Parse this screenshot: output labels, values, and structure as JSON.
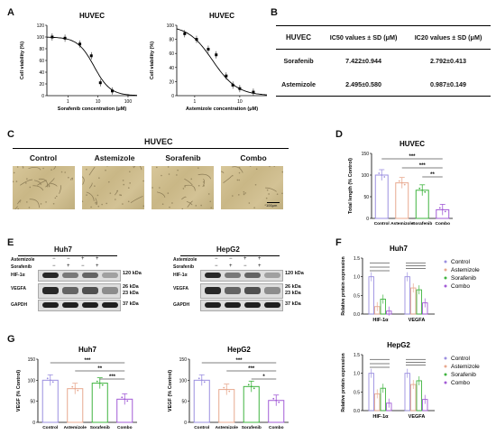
{
  "panel_letters": {
    "a": "A",
    "b": "B",
    "c": "C",
    "d": "D",
    "e": "E",
    "f": "F",
    "g": "G"
  },
  "panelA": {
    "chart1": {
      "title": "HUVEC",
      "xlabel": "Sorafenib concentration (μM)",
      "ylabel": "Cell viability (%)",
      "yticks": [
        "0",
        "20",
        "40",
        "60",
        "80",
        "100",
        "120"
      ],
      "xticks": [
        "1",
        "10",
        "100"
      ]
    },
    "chart2": {
      "title": "HUVEC",
      "xlabel": "Astemizole concentration (μM)",
      "ylabel": "Cell viability (%)",
      "yticks": [
        "0",
        "20",
        "40",
        "60",
        "80",
        "100"
      ],
      "xticks": [
        "1",
        "10"
      ]
    }
  },
  "panelB": {
    "headers": [
      "HUVEC",
      "IC50 values ± SD (μM)",
      "IC20 values ± SD (μM)"
    ],
    "rows": [
      [
        "Sorafenib",
        "7.422±0.944",
        "2.792±0.413"
      ],
      [
        "Astemizole",
        "2.495±0.580",
        "0.987±0.149"
      ]
    ]
  },
  "panelC": {
    "title": "HUVEC",
    "labels": [
      "Control",
      "Astemizole",
      "Sorafenib",
      "Combo"
    ],
    "scale": "100μm"
  },
  "panelD": {
    "title": "HUVEC",
    "ylabel": "Total length (% Control)",
    "yticks": [
      "0",
      "50",
      "100",
      "150"
    ],
    "categories": [
      "Control",
      "Astemizole",
      "Sorafenib",
      "Combo"
    ],
    "sig": [
      "***",
      "***",
      "**"
    ]
  },
  "panelE": {
    "huh7": {
      "title": "Huh7",
      "rowlabels": [
        "Astemizole",
        "Sorafenib"
      ],
      "signs": [
        [
          "−",
          "−",
          "+",
          "+"
        ],
        [
          "−",
          "+",
          "−",
          "+"
        ]
      ],
      "bands": [
        "HIF-1α",
        "VEGFA",
        "GAPDH"
      ],
      "kda": [
        "120 kDa",
        "26 kDa",
        "23 kDa",
        "37 kDa"
      ]
    },
    "hepg2": {
      "title": "HepG2",
      "rowlabels": [
        "Astemizole",
        "Sorafenib"
      ],
      "signs": [
        [
          "−",
          "−",
          "+",
          "+"
        ],
        [
          "−",
          "+",
          "−",
          "+"
        ]
      ],
      "bands": [
        "HIF-1α",
        "VEGFA",
        "GAPDH"
      ],
      "kda": [
        "120 kDa",
        "26 kDa",
        "23 kDa",
        "37 kDa"
      ]
    }
  },
  "panelF": {
    "huh7": {
      "title": "Huh7",
      "ylabel": "Relative protein expression",
      "yticks": [
        "0.0",
        "0.5",
        "1.0",
        "1.5"
      ],
      "groups": [
        "HIF-1α",
        "VEGFA"
      ],
      "legend": [
        "Control",
        "Astemizole",
        "Sorafenib",
        "Combo"
      ]
    },
    "hepg2": {
      "title": "HepG2",
      "ylabel": "Relative protein expression",
      "yticks": [
        "0.0",
        "0.5",
        "1.0",
        "1.5"
      ],
      "groups": [
        "HIF-1α",
        "VEGFA"
      ],
      "legend": [
        "Control",
        "Astemizole",
        "Sorafenib",
        "Combo"
      ]
    }
  },
  "panelG": {
    "huh7": {
      "title": "Huh7",
      "ylabel": "VEGF (% Control)",
      "yticks": [
        "0",
        "50",
        "100",
        "150"
      ],
      "categories": [
        "Control",
        "Astemizole",
        "Sorafenib",
        "Combo"
      ],
      "sig": [
        "***",
        "**",
        "***"
      ]
    },
    "hepg2": {
      "title": "HepG2",
      "ylabel": "VEGF (% Control)",
      "yticks": [
        "0",
        "50",
        "100",
        "150"
      ],
      "categories": [
        "Control",
        "Astemizole",
        "Sorafenib",
        "Combo"
      ],
      "sig": [
        "***",
        "***",
        "*"
      ]
    }
  },
  "colors": {
    "control": "#9b8fe0",
    "astemizole": "#e8a98f",
    "sorafenib": "#3fb43f",
    "combo": "#a25bd6"
  },
  "chart_data": [
    {
      "type": "scatter",
      "title": "HUVEC",
      "xlabel": "Sorafenib concentration (μM)",
      "ylabel": "Cell viability (%)",
      "x_scale": "log",
      "x": [
        0.3,
        0.8,
        2.5,
        6,
        12,
        30
      ],
      "y": [
        100,
        98,
        88,
        68,
        22,
        8
      ],
      "ylim": [
        0,
        120
      ]
    },
    {
      "type": "scatter",
      "title": "HUVEC",
      "xlabel": "Astemizole concentration (μM)",
      "ylabel": "Cell viability (%)",
      "x_scale": "log",
      "x": [
        0.6,
        1.1,
        2,
        3,
        5,
        7,
        10,
        20
      ],
      "y": [
        88,
        80,
        66,
        58,
        28,
        15,
        10,
        5
      ],
      "ylim": [
        0,
        100
      ]
    },
    {
      "type": "bar",
      "title": "HUVEC",
      "ylabel": "Total length (% Control)",
      "categories": [
        "Control",
        "Astemizole",
        "Sorafenib",
        "Combo"
      ],
      "values": [
        100,
        82,
        65,
        20
      ],
      "ylim": [
        0,
        150
      ]
    },
    {
      "type": "bar",
      "title": "Huh7",
      "ylabel": "Relative protein expression",
      "categories": [
        "HIF-1α",
        "VEGFA"
      ],
      "series": [
        {
          "name": "Control",
          "values": [
            1.0,
            1.0
          ]
        },
        {
          "name": "Astemizole",
          "values": [
            0.2,
            0.7
          ]
        },
        {
          "name": "Sorafenib",
          "values": [
            0.4,
            0.65
          ]
        },
        {
          "name": "Combo",
          "values": [
            0.08,
            0.3
          ]
        }
      ],
      "ylim": [
        0,
        1.5
      ]
    },
    {
      "type": "bar",
      "title": "HepG2",
      "ylabel": "Relative protein expression",
      "categories": [
        "HIF-1α",
        "VEGFA"
      ],
      "series": [
        {
          "name": "Control",
          "values": [
            1.0,
            1.0
          ]
        },
        {
          "name": "Astemizole",
          "values": [
            0.45,
            0.7
          ]
        },
        {
          "name": "Sorafenib",
          "values": [
            0.6,
            0.8
          ]
        },
        {
          "name": "Combo",
          "values": [
            0.2,
            0.3
          ]
        }
      ],
      "ylim": [
        0,
        1.5
      ]
    },
    {
      "type": "bar",
      "title": "Huh7",
      "ylabel": "VEGF (% Control)",
      "categories": [
        "Control",
        "Astemizole",
        "Sorafenib",
        "Combo"
      ],
      "values": [
        100,
        80,
        93,
        55
      ],
      "ylim": [
        0,
        150
      ]
    },
    {
      "type": "bar",
      "title": "HepG2",
      "ylabel": "VEGF (% Control)",
      "categories": [
        "Control",
        "Astemizole",
        "Sorafenib",
        "Combo"
      ],
      "values": [
        100,
        78,
        85,
        52
      ],
      "ylim": [
        0,
        150
      ]
    }
  ]
}
